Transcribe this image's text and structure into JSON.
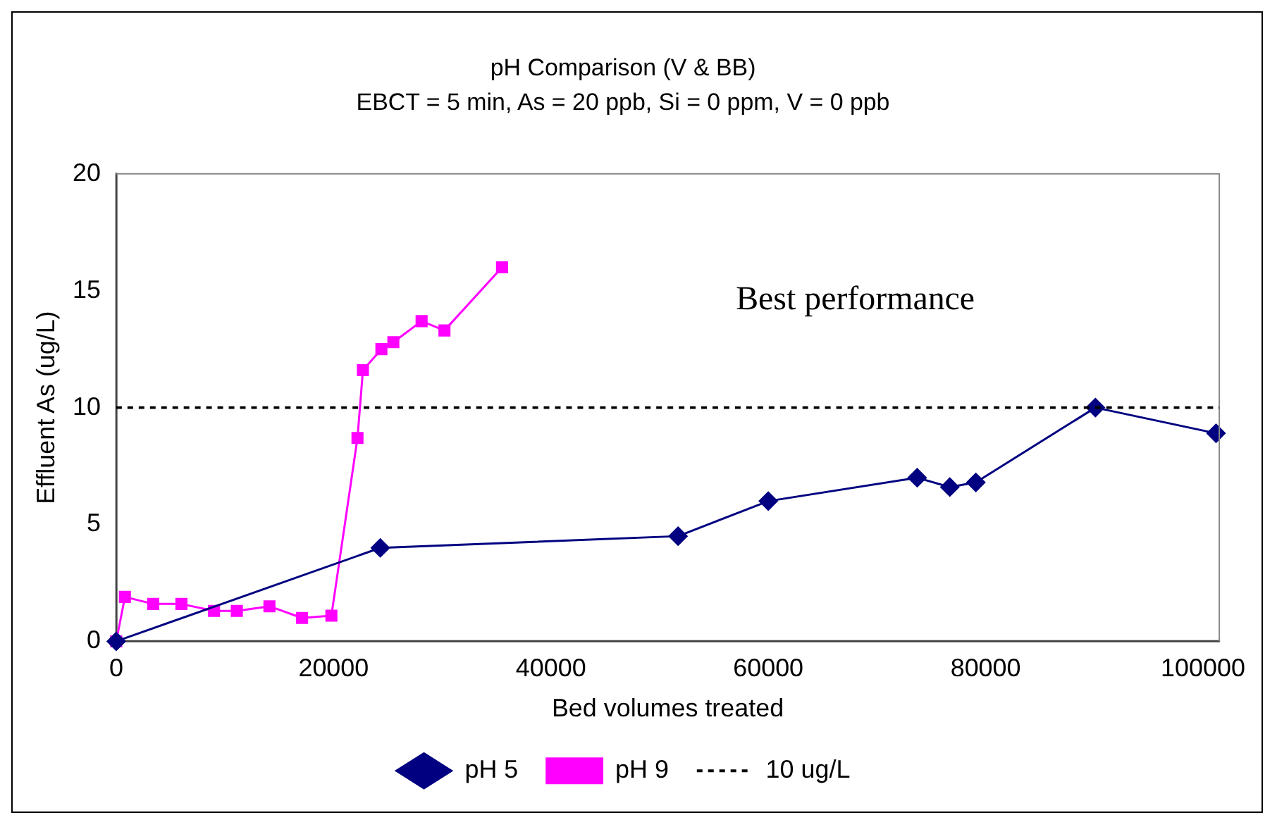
{
  "chart_data": {
    "type": "line",
    "title": "pH Comparison (V & BB)",
    "subtitle": "EBCT = 5 min, As = 20 ppb, Si = 0 ppm, V = 0 ppb",
    "xlabel": "Bed volumes treated",
    "ylabel": "Effluent As (ug/L)",
    "xlim": [
      0,
      101500
    ],
    "xticks": [
      0,
      20000,
      40000,
      60000,
      80000,
      100000
    ],
    "ylim": [
      0,
      20
    ],
    "yticks": [
      0,
      5,
      10,
      15,
      20
    ],
    "grid": false,
    "legend": "bottom",
    "line_style": "solid",
    "series": [
      {
        "name": "pH 5",
        "color": "#000080",
        "marker": "diamond",
        "x": [
          0,
          24300,
          51700,
          60000,
          73700,
          76700,
          79100,
          90100,
          101200
        ],
        "values": [
          0,
          4.0,
          4.5,
          6.0,
          7.0,
          6.6,
          6.8,
          10.0,
          8.9
        ]
      },
      {
        "name": "pH 9",
        "color": "#ff00ff",
        "marker": "square",
        "x": [
          0,
          800,
          3400,
          6000,
          9000,
          11100,
          14100,
          17100,
          19800,
          22200,
          22700,
          24400,
          25500,
          28100,
          30200,
          35500
        ],
        "values": [
          0,
          1.9,
          1.6,
          1.6,
          1.3,
          1.3,
          1.5,
          1.0,
          1.1,
          8.7,
          11.6,
          12.5,
          12.8,
          13.7,
          13.3,
          16.0
        ]
      }
    ],
    "ref_lines": [
      {
        "axis": "y",
        "value": 10,
        "label": "10 ug/L",
        "color": "#000000",
        "line_style": "dotted"
      }
    ],
    "annotations": [
      "Best performance"
    ]
  }
}
